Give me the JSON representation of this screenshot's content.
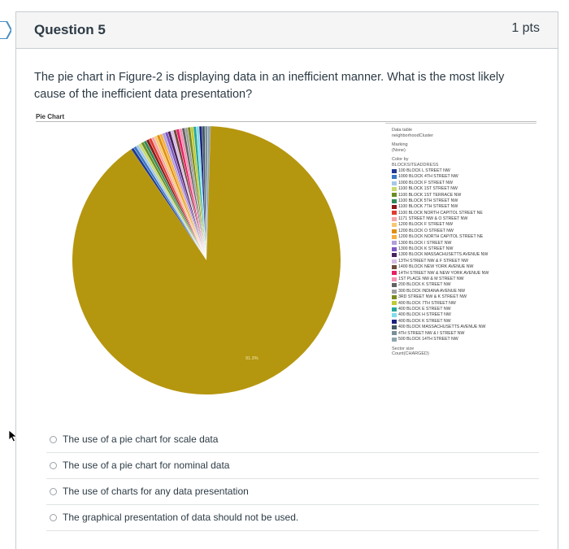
{
  "question": {
    "title": "Question 5",
    "points": "1 pts",
    "text": "The pie chart in Figure-2 is displaying data in an inefficient manner. What is the most likely cause of the inefficient data presentation?"
  },
  "figure": {
    "title": "Pie Chart",
    "legend": {
      "data_table_label": "Data table",
      "data_table_value": "neighborhoodCluster",
      "marking_label": "Marking",
      "marking_value": "(None)",
      "color_by_label": "Color by",
      "color_by_value": "BLOCKSITEADDRESS",
      "sector_size_label": "Sector size",
      "sector_size_value": "Count(CHARGED)"
    },
    "big_slice_label": "91.3%"
  },
  "chart_data": {
    "type": "pie",
    "title": "Pie Chart",
    "slice_labels": [
      "91.3%"
    ],
    "series": [
      {
        "label": "100 BLOCK L STREET NW",
        "value": 0.35,
        "color": "#1f3a93"
      },
      {
        "label": "1000 BLOCK 4TH STREET NW",
        "value": 0.35,
        "color": "#3b78c3"
      },
      {
        "label": "1000 BLOCK F STREET NW",
        "value": 0.35,
        "color": "#a7c7e7"
      },
      {
        "label": "1100 BLOCK 1ST STREET NW",
        "value": 0.35,
        "color": "#c8d96f"
      },
      {
        "label": "1100 BLOCK 1ST TERRACE NW",
        "value": 0.35,
        "color": "#6b8e23"
      },
      {
        "label": "1100 BLOCK 5TH STREET NW",
        "value": 0.35,
        "color": "#2e8b57"
      },
      {
        "label": "1100 BLOCK 7TH STREET NW",
        "value": 0.35,
        "color": "#8b1a1a"
      },
      {
        "label": "1100 BLOCK NORTH CAPITOL STREET NE",
        "value": 0.35,
        "color": "#e03c31"
      },
      {
        "label": "1171 STREET NW & O STREET NW",
        "value": 0.35,
        "color": "#f4a6a6"
      },
      {
        "label": "1200 BLOCK F STREET NW",
        "value": 0.35,
        "color": "#f7c873"
      },
      {
        "label": "1200 BLOCK O STREET NW",
        "value": 0.35,
        "color": "#e08e0b"
      },
      {
        "label": "1200 BLOCK NORTH CAPITOL STREET NE",
        "value": 0.35,
        "color": "#f5b041"
      },
      {
        "label": "1300 BLOCK I STREET NW",
        "value": 0.35,
        "color": "#b39ddb"
      },
      {
        "label": "1300 BLOCK K STREET NW",
        "value": 0.35,
        "color": "#7e57c2"
      },
      {
        "label": "1300 BLOCK MASSACHUSETTS AVENUE NW",
        "value": 0.35,
        "color": "#4a235a"
      },
      {
        "label": "13TH STREET NW & F STREET NW",
        "value": 0.35,
        "color": "#d7bde2"
      },
      {
        "label": "1400 BLOCK NEW YORK AVENUE NW",
        "value": 0.35,
        "color": "#6e4b3a"
      },
      {
        "label": "14TH STREET NW & NEW YORK AVENUE NW",
        "value": 0.35,
        "color": "#e91e63"
      },
      {
        "label": "1ST PLACE NW & M STREET NW",
        "value": 0.35,
        "color": "#f48fb1"
      },
      {
        "label": "200 BLOCK K STREET NW",
        "value": 0.35,
        "color": "#616161"
      },
      {
        "label": "300 BLOCK INDIANA AVENUE NW",
        "value": 0.35,
        "color": "#9e9e9e"
      },
      {
        "label": "3RD STREET NW & K STREET NW",
        "value": 0.35,
        "color": "#7a8a1c"
      },
      {
        "label": "400 BLOCK 7TH STREET NW",
        "value": 0.35,
        "color": "#c0ca33"
      },
      {
        "label": "400 BLOCK E STREET NW",
        "value": 0.35,
        "color": "#26a69a"
      },
      {
        "label": "400 BLOCK H STREET NW",
        "value": 0.35,
        "color": "#80deea"
      },
      {
        "label": "400 BLOCK K STREET NW",
        "value": 0.35,
        "color": "#1a237e"
      },
      {
        "label": "400 BLOCK MASSACHUSETTS AVENUE NW",
        "value": 0.35,
        "color": "#455a64"
      },
      {
        "label": "4TH STREET NW & I STREET NW",
        "value": 0.35,
        "color": "#78909c"
      },
      {
        "label": "500 BLOCK 14TH STREET NW",
        "value": 0.35,
        "color": "#90a4ae"
      },
      {
        "label": "",
        "value": 91.3,
        "color": "#b5960f"
      }
    ]
  },
  "answers": [
    {
      "label": "The use of a pie chart for scale data"
    },
    {
      "label": "The use of a pie chart for nominal data"
    },
    {
      "label": "The use of charts for any data presentation"
    },
    {
      "label": "The graphical presentation of data should not be used."
    }
  ]
}
